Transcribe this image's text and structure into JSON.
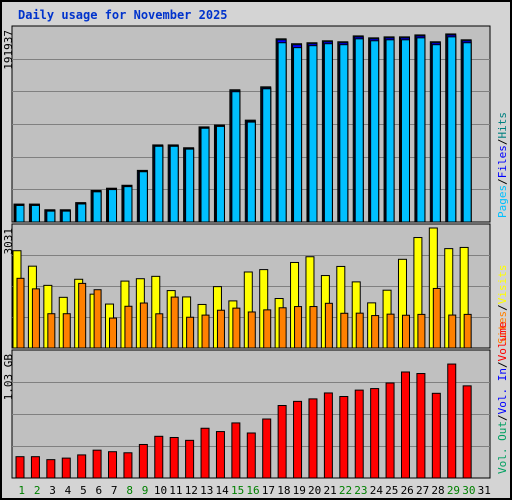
{
  "title": "Daily usage for November 2025",
  "colors": {
    "hits": "#008080",
    "files": "#0000ff",
    "pages": "#00c0ff",
    "visits": "#ffff00",
    "sites": "#ff8000",
    "kbin": "#0000ff",
    "kbout": "#00a060",
    "volume": "#ff0000",
    "separator": "#000000",
    "weekend_day": "#008000",
    "weekday": "#000000"
  },
  "chart_data": [
    {
      "type": "bar",
      "panel": "hits-files-pages",
      "scale_label": "191937",
      "ylim": [
        0,
        191937
      ],
      "legend": [
        {
          "label": "Hits",
          "color_key": "hits"
        },
        {
          "label": "Files",
          "color_key": "files"
        },
        {
          "label": "Pages",
          "color_key": "pages"
        }
      ],
      "series": [
        {
          "name": "Hits",
          "values": [
            18300,
            18300,
            12500,
            12500,
            19800,
            32200,
            34500,
            37500,
            52700,
            78700,
            78700,
            75800,
            97100,
            99000,
            135000,
            104000,
            138000,
            187000,
            182000,
            183000,
            185000,
            184000,
            190000,
            188000,
            189000,
            189000,
            191000,
            184000,
            192000,
            186000
          ]
        },
        {
          "name": "Files",
          "values": [
            17600,
            17600,
            11800,
            11800,
            19100,
            31500,
            33800,
            36800,
            52000,
            78000,
            78000,
            75100,
            96400,
            98300,
            134000,
            103000,
            137000,
            186000,
            181000,
            182000,
            184000,
            183000,
            189000,
            187000,
            188000,
            188000,
            190000,
            183000,
            191000,
            185000
          ]
        },
        {
          "name": "Pages",
          "values": [
            16900,
            16900,
            11100,
            11100,
            18400,
            30800,
            33100,
            36100,
            51300,
            77300,
            77300,
            74400,
            95700,
            97600,
            133000,
            102000,
            136000,
            183000,
            178000,
            180000,
            182000,
            181000,
            187000,
            185000,
            186000,
            186000,
            188000,
            181000,
            189000,
            183000
          ]
        }
      ]
    },
    {
      "type": "bar",
      "panel": "visits-sites",
      "scale_label": "3031",
      "ylim": [
        0,
        3031
      ],
      "legend": [
        {
          "label": "Visits",
          "color_key": "visits"
        },
        {
          "label": "Sites",
          "color_key": "sites"
        }
      ],
      "series": [
        {
          "name": "Visits",
          "values": [
            2457,
            2067,
            1582,
            1280,
            1736,
            1360,
            1110,
            1690,
            1750,
            1810,
            1450,
            1290,
            1100,
            1550,
            1190,
            1920,
            1980,
            1250,
            2160,
            2305,
            1830,
            2060,
            1670,
            1140,
            1460,
            2240,
            2790,
            3031,
            2510,
            2540
          ]
        },
        {
          "name": "Sites",
          "values": [
            1760,
            1494,
            866,
            866,
            1632,
            1472,
            756,
            1054,
            1136,
            864,
            1286,
            777,
            831,
            954,
            1007,
            910,
            963,
            1016,
            1047,
            1047,
            1129,
            877,
            880,
            819,
            855,
            827,
            849,
            1504,
            832,
            849
          ]
        }
      ]
    },
    {
      "type": "bar",
      "panel": "volume",
      "scale_label": "1.03 GB",
      "ylim": [
        0,
        1.03
      ],
      "legend": [
        {
          "label": "Volume",
          "color_key": "volume"
        },
        {
          "label": "Vol. In",
          "color_key": "kbin"
        },
        {
          "label": "Vol. Out",
          "color_key": "kbout"
        }
      ],
      "series": [
        {
          "name": "Volume",
          "values": [
            0.18,
            0.18,
            0.155,
            0.168,
            0.195,
            0.235,
            0.222,
            0.213,
            0.283,
            0.352,
            0.342,
            0.318,
            0.42,
            0.392,
            0.465,
            0.38,
            0.498,
            0.612,
            0.647,
            0.668,
            0.718,
            0.688,
            0.742,
            0.755,
            0.802,
            0.895,
            0.882,
            0.715,
            0.962,
            0.778
          ]
        }
      ]
    }
  ],
  "days": [
    "1",
    "2",
    "3",
    "4",
    "5",
    "6",
    "7",
    "8",
    "9",
    "10",
    "11",
    "12",
    "13",
    "14",
    "15",
    "16",
    "17",
    "18",
    "19",
    "20",
    "21",
    "22",
    "23",
    "24",
    "25",
    "26",
    "27",
    "28",
    "29",
    "30",
    "31"
  ],
  "weekend_days": [
    1,
    2,
    8,
    9,
    15,
    16,
    22,
    23,
    29,
    30
  ]
}
